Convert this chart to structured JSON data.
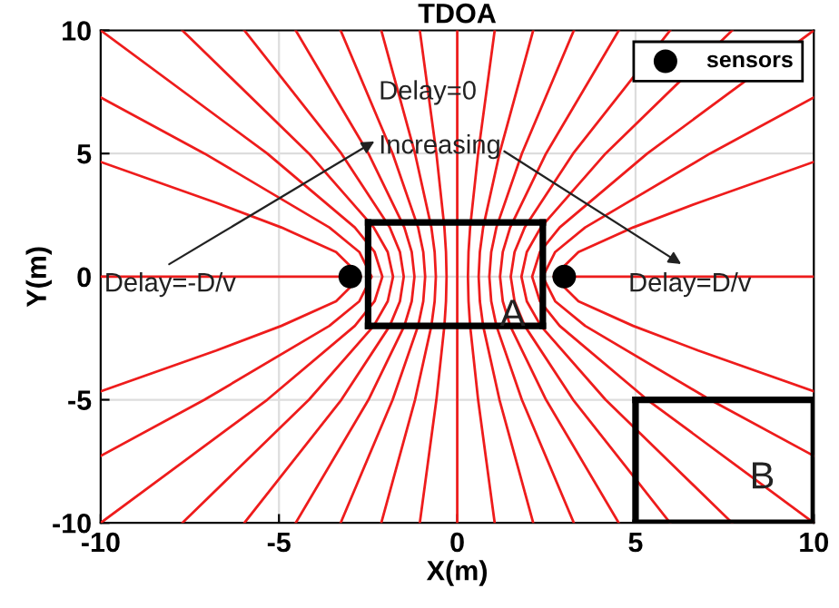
{
  "chart_data": {
    "type": "line",
    "title": "TDOA",
    "xlabel": "X(m)",
    "ylabel": "Y(m)",
    "xlim": [
      -10,
      10
    ],
    "ylim": [
      -10,
      10
    ],
    "xticks": [
      -10,
      -5,
      0,
      5,
      10
    ],
    "yticks": [
      -10,
      -5,
      0,
      5,
      10
    ],
    "grid": true,
    "legend": "top right",
    "line_style": "solid",
    "annotations": [
      "Delay=0",
      "Increasing",
      "Delay=-D/v",
      "Delay=D/v",
      "A",
      "B"
    ],
    "series": [
      {
        "color": "#ee1c1c",
        "x": [
          0,
          0
        ],
        "values": [
          -10,
          10
        ]
      },
      {
        "color": "#ee1c1c",
        "x": [
          1.05,
          0.585,
          0.361,
          0.316,
          0.3,
          0.316,
          0.361,
          0.585,
          1.05
        ],
        "values": [
          -10,
          -5,
          -2,
          -1,
          0,
          1,
          2,
          5,
          10
        ]
      },
      {
        "color": "#ee1c1c",
        "x": [
          -1.05,
          -0.585,
          -0.361,
          -0.316,
          -0.3,
          -0.316,
          -0.361,
          -0.585,
          -1.05
        ],
        "values": [
          -10,
          -5,
          -2,
          -1,
          0,
          1,
          2,
          5,
          10
        ]
      },
      {
        "color": "#ee1c1c",
        "x": [
          2.13,
          1.184,
          0.726,
          0.634,
          0.6,
          0.634,
          0.726,
          1.184,
          2.13
        ],
        "values": [
          -10,
          -5,
          -2,
          -1,
          0,
          1,
          2,
          5,
          10
        ]
      },
      {
        "color": "#ee1c1c",
        "x": [
          -2.13,
          -1.184,
          -0.726,
          -0.634,
          -0.6,
          -0.634,
          -0.726,
          -1.184,
          -2.13
        ],
        "values": [
          -10,
          -5,
          -2,
          -1,
          0,
          1,
          2,
          5,
          10
        ]
      },
      {
        "color": "#ee1c1c",
        "x": [
          3.27,
          1.812,
          1.098,
          0.953,
          0.9,
          0.953,
          1.098,
          1.812,
          3.27
        ],
        "values": [
          -10,
          -5,
          -2,
          -1,
          0,
          1,
          2,
          5,
          10
        ]
      },
      {
        "color": "#ee1c1c",
        "x": [
          -3.27,
          -1.812,
          -1.098,
          -0.953,
          -0.9,
          -0.953,
          -1.098,
          -1.812,
          -3.27
        ],
        "values": [
          -10,
          -5,
          -2,
          -1,
          0,
          1,
          2,
          5,
          10
        ]
      },
      {
        "color": "#ee1c1c",
        "x": [
          4.53,
          2.49,
          1.484,
          1.277,
          1.2,
          1.277,
          1.484,
          2.49,
          4.53
        ],
        "values": [
          -10,
          -5,
          -2,
          -1,
          0,
          1,
          2,
          5,
          10
        ]
      },
      {
        "color": "#ee1c1c",
        "x": [
          -4.53,
          -2.49,
          -1.484,
          -1.277,
          -1.2,
          -1.277,
          -1.484,
          -2.49,
          -4.53
        ],
        "values": [
          -10,
          -5,
          -2,
          -1,
          0,
          1,
          2,
          5,
          10
        ]
      },
      {
        "color": "#ee1c1c",
        "x": [
          5.97,
          3.25,
          1.893,
          1.607,
          1.5,
          1.607,
          1.893,
          3.25,
          5.97
        ],
        "values": [
          -10,
          -5,
          -2,
          -1,
          0,
          1,
          2,
          5,
          10
        ]
      },
      {
        "color": "#ee1c1c",
        "x": [
          -5.97,
          -3.25,
          -1.893,
          -1.607,
          -1.5,
          -1.607,
          -1.893,
          -3.25,
          -5.97
        ],
        "values": [
          -10,
          -5,
          -2,
          -1,
          0,
          1,
          2,
          5,
          10
        ]
      },
      {
        "color": "#ee1c1c",
        "x": [
          7.71,
          4.16,
          2.343,
          1.95,
          1.8,
          1.95,
          2.343,
          4.16,
          7.71
        ],
        "values": [
          -10,
          -5,
          -2,
          -1,
          0,
          1,
          2,
          5,
          10
        ]
      },
      {
        "color": "#ee1c1c",
        "x": [
          -7.71,
          -4.16,
          -2.343,
          -1.95,
          -1.8,
          -1.95,
          -2.343,
          -4.16,
          -7.71
        ],
        "values": [
          -10,
          -5,
          -2,
          -1,
          0,
          1,
          2,
          5,
          10
        ]
      },
      {
        "color": "#ee1c1c",
        "x": [
          10,
          5.33,
          2.873,
          2.318,
          2.1,
          2.318,
          2.873,
          5.33,
          10
        ],
        "values": [
          -10,
          -5,
          -2,
          -1,
          0,
          1,
          2,
          5,
          10
        ]
      },
      {
        "color": "#ee1c1c",
        "x": [
          -10,
          -5.33,
          -2.873,
          -2.318,
          -2.1,
          -2.318,
          -2.873,
          -5.33,
          -10
        ],
        "values": [
          -10,
          -5,
          -2,
          -1,
          0,
          1,
          2,
          5,
          10
        ]
      },
      {
        "color": "#ee1c1c",
        "x": [
          10,
          7.09,
          3.588,
          2.746,
          2.4,
          2.746,
          3.588,
          7.09,
          10
        ],
        "values": [
          -7.28,
          -5,
          -2,
          -1,
          0,
          1,
          2,
          5,
          7.28
        ]
      },
      {
        "color": "#ee1c1c",
        "x": [
          -10,
          -7.09,
          -3.588,
          -2.746,
          -2.4,
          -2.746,
          -3.588,
          -7.09,
          -10
        ],
        "values": [
          -7.28,
          -5,
          -2,
          -1,
          0,
          1,
          2,
          5,
          7.28
        ]
      },
      {
        "color": "#ee1c1c",
        "x": [
          10,
          6.757,
          4.934,
          3.399,
          2.7,
          3.399,
          4.934,
          6.757,
          10
        ],
        "values": [
          -4.66,
          -3,
          -2,
          -1,
          0,
          1,
          2,
          3,
          4.66
        ]
      },
      {
        "color": "#ee1c1c",
        "x": [
          -10,
          -6.757,
          -4.934,
          -3.399,
          -2.7,
          -3.399,
          -4.934,
          -6.757,
          -10
        ],
        "values": [
          -4.66,
          -3,
          -2,
          -1,
          0,
          1,
          2,
          3,
          4.66
        ]
      },
      {
        "color": "#ee1c1c",
        "x": [
          3,
          10
        ],
        "values": [
          0,
          0
        ]
      },
      {
        "color": "#ee1c1c",
        "x": [
          -10,
          -3
        ],
        "values": [
          0,
          0
        ]
      },
      {
        "color": "#000000",
        "x": [
          -2.5,
          2.4
        ],
        "values": [
          -2,
          -2
        ]
      },
      {
        "color": "#000000",
        "x": [
          2.4,
          2.4
        ],
        "values": [
          -2,
          2.2
        ]
      },
      {
        "color": "#000000",
        "x": [
          -2.5,
          2.4
        ],
        "values": [
          2.2,
          2.2
        ]
      },
      {
        "color": "#000000",
        "x": [
          -2.5,
          -2.5
        ],
        "values": [
          -2,
          2.2
        ]
      },
      {
        "color": "#000000",
        "x": [
          5,
          10
        ],
        "values": [
          -10,
          -10
        ]
      },
      {
        "color": "#000000",
        "x": [
          10,
          10
        ],
        "values": [
          -10,
          -5
        ]
      },
      {
        "color": "#000000",
        "x": [
          5,
          10
        ],
        "values": [
          -5,
          -5
        ]
      },
      {
        "color": "#000000",
        "x": [
          5,
          5
        ],
        "values": [
          -10,
          -5
        ]
      },
      {
        "type": "scatter",
        "name": "sensors",
        "color": "#000000",
        "marker": "circle",
        "x": [
          -3,
          3
        ],
        "values": [
          0,
          0
        ]
      }
    ]
  }
}
